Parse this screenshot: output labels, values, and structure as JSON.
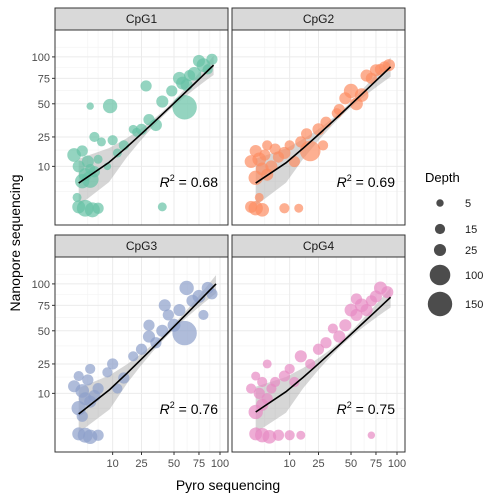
{
  "chart_data": {
    "type": "scatter",
    "xlabel": "Pyro sequencing",
    "ylabel": "Nanopore sequencing",
    "axis_scale": "sqrt",
    "xlim": [
      0,
      100
    ],
    "ylim": [
      0,
      125
    ],
    "x_ticks": [
      {
        "value": 10,
        "label": "10"
      },
      {
        "value": 25,
        "label": "25"
      },
      {
        "value": 50,
        "label": "50"
      },
      {
        "value": 75,
        "label": "75"
      },
      {
        "value": 100,
        "label": "100"
      }
    ],
    "y_ticks": [
      {
        "value": 10,
        "label": "10"
      },
      {
        "value": 25,
        "label": "25"
      },
      {
        "value": 50,
        "label": "50"
      },
      {
        "value": 75,
        "label": "75"
      },
      {
        "value": 100,
        "label": "100"
      }
    ],
    "grid": true,
    "legend": {
      "title": "Depth",
      "placement": "right",
      "entries": [
        {
          "label": "5",
          "value": 5
        },
        {
          "label": "15",
          "value": 15
        },
        {
          "label": "25",
          "value": 25
        },
        {
          "label": "100",
          "value": 100
        },
        {
          "label": "150",
          "value": 150
        }
      ]
    },
    "panels": [
      {
        "name": "CpG1",
        "color": "#66c2a5",
        "r2_value": "0.68",
        "fit": {
          "x": [
            1,
            92
          ],
          "y": [
            4.5,
            90
          ]
        },
        "points": [
          {
            "x": 1.5,
            "y": 5,
            "depth": 40
          },
          {
            "x": 2,
            "y": 7,
            "depth": 30
          },
          {
            "x": 3,
            "y": 5.5,
            "depth": 60
          },
          {
            "x": 1,
            "y": 10,
            "depth": 25
          },
          {
            "x": 0.5,
            "y": 15,
            "depth": 35
          },
          {
            "x": 2.5,
            "y": 12,
            "depth": 25
          },
          {
            "x": 1.5,
            "y": 17,
            "depth": 20
          },
          {
            "x": 4,
            "y": 8,
            "depth": 20
          },
          {
            "x": 3,
            "y": 9,
            "depth": 15
          },
          {
            "x": 2,
            "y": 0.3,
            "depth": 60
          },
          {
            "x": 3.5,
            "y": 0.2,
            "depth": 45
          },
          {
            "x": 1,
            "y": 0.4,
            "depth": 30
          },
          {
            "x": 5,
            "y": 0.3,
            "depth": 20
          },
          {
            "x": 0.8,
            "y": 1.5,
            "depth": 10
          },
          {
            "x": 40,
            "y": 0.4,
            "depth": 10
          },
          {
            "x": 4,
            "y": 25,
            "depth": 15
          },
          {
            "x": 6,
            "y": 22,
            "depth": 10
          },
          {
            "x": 3,
            "y": 48,
            "depth": 5
          },
          {
            "x": 9,
            "y": 48,
            "depth": 40
          },
          {
            "x": 5,
            "y": 13,
            "depth": 10
          },
          {
            "x": 10,
            "y": 23,
            "depth": 15
          },
          {
            "x": 12,
            "y": 16,
            "depth": 10
          },
          {
            "x": 15,
            "y": 20,
            "depth": 15
          },
          {
            "x": 20,
            "y": 30,
            "depth": 10
          },
          {
            "x": 25,
            "y": 30,
            "depth": 20
          },
          {
            "x": 30,
            "y": 37,
            "depth": 20
          },
          {
            "x": 35,
            "y": 33,
            "depth": 25
          },
          {
            "x": 22,
            "y": 28,
            "depth": 10
          },
          {
            "x": 28,
            "y": 67,
            "depth": 20
          },
          {
            "x": 40,
            "y": 52,
            "depth": 25
          },
          {
            "x": 48,
            "y": 62,
            "depth": 20
          },
          {
            "x": 55,
            "y": 75,
            "depth": 30
          },
          {
            "x": 62,
            "y": 68,
            "depth": 25
          },
          {
            "x": 65,
            "y": 78,
            "depth": 20
          },
          {
            "x": 70,
            "y": 80,
            "depth": 35
          },
          {
            "x": 75,
            "y": 95,
            "depth": 25
          },
          {
            "x": 80,
            "y": 90,
            "depth": 35
          },
          {
            "x": 60,
            "y": 47,
            "depth": 150
          },
          {
            "x": 58,
            "y": 70,
            "depth": 30
          },
          {
            "x": 90,
            "y": 97,
            "depth": 20
          },
          {
            "x": 85,
            "y": 85,
            "depth": 15
          },
          {
            "x": 8,
            "y": 10,
            "depth": 5
          }
        ]
      },
      {
        "name": "CpG2",
        "color": "#fc8d62",
        "r2_value": "0.69",
        "fit": {
          "x": [
            1,
            92
          ],
          "y": [
            4.5,
            88
          ]
        },
        "points": [
          {
            "x": 1,
            "y": 6,
            "depth": 40
          },
          {
            "x": 2,
            "y": 9,
            "depth": 30
          },
          {
            "x": 1.5,
            "y": 13,
            "depth": 35
          },
          {
            "x": 3,
            "y": 7,
            "depth": 25
          },
          {
            "x": 0.5,
            "y": 12,
            "depth": 30
          },
          {
            "x": 2.5,
            "y": 15,
            "depth": 20
          },
          {
            "x": 1,
            "y": 17,
            "depth": 25
          },
          {
            "x": 4,
            "y": 10,
            "depth": 25
          },
          {
            "x": 3,
            "y": 20,
            "depth": 15
          },
          {
            "x": 5,
            "y": 18,
            "depth": 20
          },
          {
            "x": 1,
            "y": 0.3,
            "depth": 40
          },
          {
            "x": 2,
            "y": 0.2,
            "depth": 35
          },
          {
            "x": 0.5,
            "y": 0.4,
            "depth": 25
          },
          {
            "x": 8,
            "y": 0.3,
            "depth": 15
          },
          {
            "x": 14,
            "y": 0.3,
            "depth": 10
          },
          {
            "x": 1.5,
            "y": 1.5,
            "depth": 10
          },
          {
            "x": 6,
            "y": 14,
            "depth": 20
          },
          {
            "x": 8,
            "y": 16,
            "depth": 25
          },
          {
            "x": 10,
            "y": 20,
            "depth": 15
          },
          {
            "x": 12,
            "y": 12,
            "depth": 20
          },
          {
            "x": 15,
            "y": 22,
            "depth": 20
          },
          {
            "x": 20,
            "y": 17,
            "depth": 100
          },
          {
            "x": 18,
            "y": 27,
            "depth": 20
          },
          {
            "x": 25,
            "y": 30,
            "depth": 25
          },
          {
            "x": 30,
            "y": 35,
            "depth": 20
          },
          {
            "x": 28,
            "y": 20,
            "depth": 15
          },
          {
            "x": 40,
            "y": 45,
            "depth": 20
          },
          {
            "x": 45,
            "y": 55,
            "depth": 25
          },
          {
            "x": 50,
            "y": 62,
            "depth": 40
          },
          {
            "x": 55,
            "y": 50,
            "depth": 30
          },
          {
            "x": 60,
            "y": 58,
            "depth": 35
          },
          {
            "x": 65,
            "y": 78,
            "depth": 25
          },
          {
            "x": 70,
            "y": 75,
            "depth": 20
          },
          {
            "x": 75,
            "y": 84,
            "depth": 25
          },
          {
            "x": 80,
            "y": 85,
            "depth": 20
          },
          {
            "x": 85,
            "y": 88,
            "depth": 20
          },
          {
            "x": 90,
            "y": 90,
            "depth": 25
          },
          {
            "x": 38,
            "y": 42,
            "depth": 15
          }
        ]
      },
      {
        "name": "CpG3",
        "color": "#8da0cb",
        "r2_value": "0.76",
        "fit": {
          "x": [
            1,
            95
          ],
          "y": [
            3.5,
            100
          ]
        },
        "points": [
          {
            "x": 1,
            "y": 5,
            "depth": 40
          },
          {
            "x": 2,
            "y": 8,
            "depth": 30
          },
          {
            "x": 1.5,
            "y": 11,
            "depth": 35
          },
          {
            "x": 3,
            "y": 7,
            "depth": 25
          },
          {
            "x": 0.5,
            "y": 13,
            "depth": 25
          },
          {
            "x": 2.5,
            "y": 16,
            "depth": 20
          },
          {
            "x": 1,
            "y": 18,
            "depth": 15
          },
          {
            "x": 4,
            "y": 9,
            "depth": 25
          },
          {
            "x": 3,
            "y": 22,
            "depth": 15
          },
          {
            "x": 5,
            "y": 12,
            "depth": 20
          },
          {
            "x": 1.5,
            "y": 3,
            "depth": 20
          },
          {
            "x": 2,
            "y": 0.3,
            "depth": 45
          },
          {
            "x": 3,
            "y": 0.2,
            "depth": 40
          },
          {
            "x": 1,
            "y": 0.4,
            "depth": 30
          },
          {
            "x": 5,
            "y": 0.3,
            "depth": 20
          },
          {
            "x": 8,
            "y": 20,
            "depth": 15
          },
          {
            "x": 10,
            "y": 25,
            "depth": 20
          },
          {
            "x": 12,
            "y": 12,
            "depth": 15
          },
          {
            "x": 15,
            "y": 17,
            "depth": 20
          },
          {
            "x": 20,
            "y": 30,
            "depth": 15
          },
          {
            "x": 25,
            "y": 35,
            "depth": 20
          },
          {
            "x": 30,
            "y": 45,
            "depth": 25
          },
          {
            "x": 35,
            "y": 40,
            "depth": 20
          },
          {
            "x": 40,
            "y": 50,
            "depth": 25
          },
          {
            "x": 45,
            "y": 65,
            "depth": 20
          },
          {
            "x": 50,
            "y": 55,
            "depth": 30
          },
          {
            "x": 55,
            "y": 70,
            "depth": 25
          },
          {
            "x": 60,
            "y": 48,
            "depth": 150
          },
          {
            "x": 62,
            "y": 95,
            "depth": 40
          },
          {
            "x": 68,
            "y": 80,
            "depth": 25
          },
          {
            "x": 75,
            "y": 85,
            "depth": 30
          },
          {
            "x": 80,
            "y": 65,
            "depth": 15
          },
          {
            "x": 85,
            "y": 95,
            "depth": 25
          },
          {
            "x": 90,
            "y": 88,
            "depth": 20
          },
          {
            "x": 30,
            "y": 55,
            "depth": 20
          },
          {
            "x": 42,
            "y": 75,
            "depth": 25
          }
        ]
      },
      {
        "name": "CpG4",
        "color": "#e78ac3",
        "r2_value": "0.75",
        "fit": {
          "x": [
            1,
            92
          ],
          "y": [
            4,
            84
          ]
        },
        "points": [
          {
            "x": 1,
            "y": 4,
            "depth": 40
          },
          {
            "x": 2,
            "y": 6,
            "depth": 25
          },
          {
            "x": 1.5,
            "y": 10,
            "depth": 20
          },
          {
            "x": 3,
            "y": 8,
            "depth": 20
          },
          {
            "x": 0.5,
            "y": 12,
            "depth": 15
          },
          {
            "x": 2,
            "y": 15,
            "depth": 15
          },
          {
            "x": 1,
            "y": 18,
            "depth": 10
          },
          {
            "x": 4,
            "y": 12,
            "depth": 15
          },
          {
            "x": 3,
            "y": 25,
            "depth": 10
          },
          {
            "x": 2,
            "y": 0.3,
            "depth": 40
          },
          {
            "x": 3.5,
            "y": 0.2,
            "depth": 35
          },
          {
            "x": 1,
            "y": 0.4,
            "depth": 30
          },
          {
            "x": 6,
            "y": 0.3,
            "depth": 20
          },
          {
            "x": 10,
            "y": 0.3,
            "depth": 15
          },
          {
            "x": 15,
            "y": 0.3,
            "depth": 10
          },
          {
            "x": 70,
            "y": 0.3,
            "depth": 5
          },
          {
            "x": 5,
            "y": 15,
            "depth": 15
          },
          {
            "x": 8,
            "y": 18,
            "depth": 20
          },
          {
            "x": 10,
            "y": 22,
            "depth": 15
          },
          {
            "x": 12,
            "y": 15,
            "depth": 15
          },
          {
            "x": 15,
            "y": 30,
            "depth": 25
          },
          {
            "x": 20,
            "y": 25,
            "depth": 15
          },
          {
            "x": 25,
            "y": 35,
            "depth": 20
          },
          {
            "x": 30,
            "y": 40,
            "depth": 20
          },
          {
            "x": 40,
            "y": 45,
            "depth": 25
          },
          {
            "x": 45,
            "y": 55,
            "depth": 25
          },
          {
            "x": 50,
            "y": 70,
            "depth": 30
          },
          {
            "x": 55,
            "y": 65,
            "depth": 25
          },
          {
            "x": 60,
            "y": 75,
            "depth": 35
          },
          {
            "x": 65,
            "y": 70,
            "depth": 25
          },
          {
            "x": 70,
            "y": 80,
            "depth": 20
          },
          {
            "x": 75,
            "y": 85,
            "depth": 25
          },
          {
            "x": 80,
            "y": 95,
            "depth": 30
          },
          {
            "x": 88,
            "y": 90,
            "depth": 25
          },
          {
            "x": 35,
            "y": 52,
            "depth": 15
          },
          {
            "x": 55,
            "y": 82,
            "depth": 20
          }
        ]
      }
    ]
  }
}
